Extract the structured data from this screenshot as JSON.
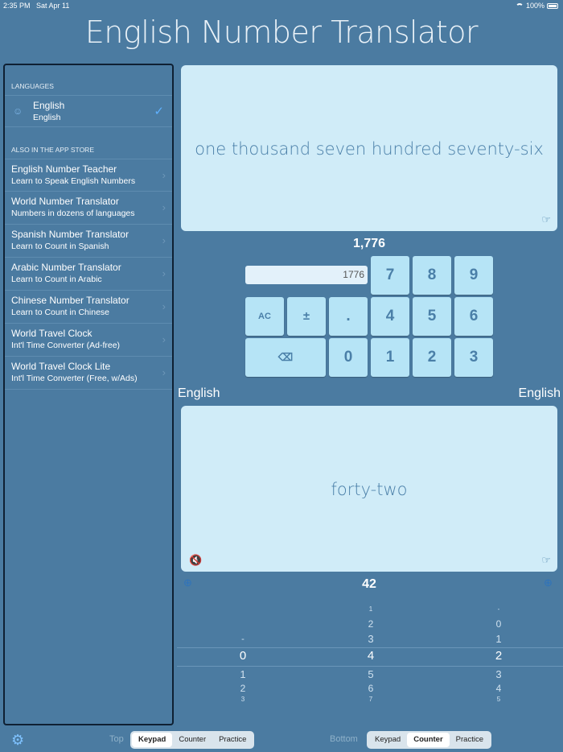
{
  "status": {
    "time": "2:35 PM",
    "date": "Sat Apr 11",
    "battery": "100%"
  },
  "app_title": "English Number Translator",
  "sidebar": {
    "languages_header": "LANGUAGES",
    "selected_language": {
      "name": "English",
      "native": "English"
    },
    "store_header": "ALSO IN THE APP STORE",
    "store_items": [
      {
        "title": "English Number Teacher",
        "subtitle": "Learn to Speak English Numbers"
      },
      {
        "title": "World Number Translator",
        "subtitle": "Numbers in dozens of languages"
      },
      {
        "title": "Spanish Number Translator",
        "subtitle": "Learn to Count in Spanish"
      },
      {
        "title": "Arabic Number Translator",
        "subtitle": "Learn to Count in Arabic"
      },
      {
        "title": "Chinese Number Translator",
        "subtitle": "Learn to Count in Chinese"
      },
      {
        "title": "World Travel Clock",
        "subtitle": "Int'l Time Converter (Ad-free)"
      },
      {
        "title": "World Travel Clock Lite",
        "subtitle": "Int'l Time Converter (Free, w/Ads)"
      }
    ]
  },
  "top_panel": {
    "words": "one thousand seven hundred seventy-six",
    "number": "1,776"
  },
  "keypad": {
    "display_value": "1776",
    "keys": {
      "seven": "7",
      "eight": "8",
      "nine": "9",
      "ac": "AC",
      "plusminus": "±",
      "dot": ".",
      "four": "4",
      "five": "5",
      "six": "6",
      "zero": "0",
      "one": "1",
      "two": "2",
      "three": "3"
    }
  },
  "language_labels": {
    "left": "English",
    "right": "English"
  },
  "bottom_panel": {
    "words": "forty-two",
    "number": "42"
  },
  "counter_picker": {
    "col1": [
      "-",
      "0",
      "1",
      "2",
      "3"
    ],
    "col2": [
      "1",
      "2",
      "3",
      "4",
      "5",
      "6",
      "7"
    ],
    "col3": [
      "-",
      "0",
      "1",
      "2",
      "3",
      "4",
      "5"
    ]
  },
  "tabbar": {
    "top_label": "Top",
    "bottom_label": "Bottom",
    "top_segments": [
      "Keypad",
      "Counter",
      "Practice"
    ],
    "bottom_segments": [
      "Keypad",
      "Counter",
      "Practice"
    ],
    "top_selected": "Keypad",
    "bottom_selected": "Counter"
  },
  "colors": {
    "background": "#4b7ba1",
    "panel": "#d0ecf8",
    "key": "#b6e4f6",
    "accent": "#2f73bb"
  }
}
